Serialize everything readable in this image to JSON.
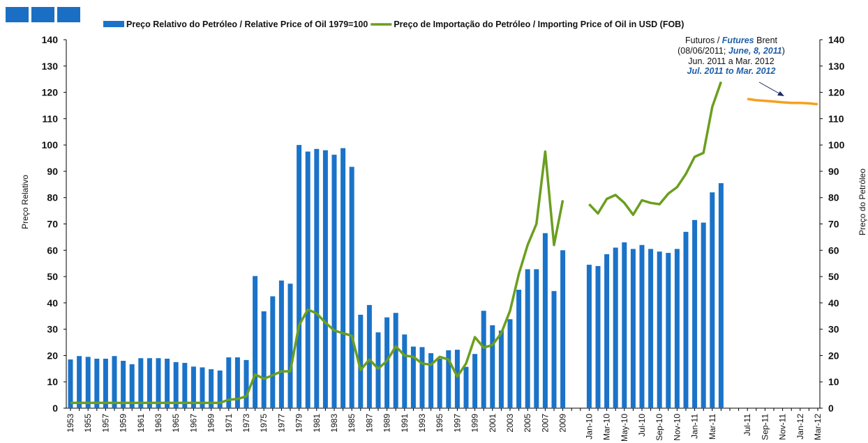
{
  "chart_data": {
    "type": "bar",
    "categories": [
      "1953",
      null,
      "1955",
      null,
      "1957",
      null,
      "1959",
      null,
      "1961",
      null,
      "1963",
      null,
      "1965",
      null,
      "1967",
      null,
      "1969",
      null,
      "1971",
      null,
      "1973",
      null,
      "1975",
      null,
      "1977",
      null,
      "1979",
      null,
      "1981",
      null,
      "1983",
      null,
      "1985",
      null,
      "1987",
      null,
      "1989",
      null,
      "1991",
      null,
      "1993",
      null,
      "1995",
      null,
      "1997",
      null,
      "1999",
      null,
      "2001",
      null,
      "2003",
      null,
      "2005",
      null,
      "2007",
      null,
      "2009",
      null,
      null,
      "Jan-10",
      null,
      "Mar-10",
      null,
      "May-10",
      null,
      "Jul-10",
      null,
      "Sep-10",
      null,
      "Nov-10",
      null,
      "Jan-11",
      null,
      "Mar-11",
      null,
      null,
      null,
      "Jul-11",
      null,
      "Sep-11",
      null,
      "Nov-11",
      null,
      "Jan-12",
      null,
      "Mar-12"
    ],
    "series": [
      {
        "name": "Preço Relativo do Petróleo / Relative Price of Oil 1979=100",
        "type": "bar",
        "color": "#1a73c8",
        "values": [
          18.5,
          19.8,
          19.5,
          18.8,
          18.8,
          19.8,
          18,
          16.7,
          19,
          19,
          19,
          18.8,
          17.5,
          17.2,
          15.8,
          15.5,
          14.8,
          14.3,
          19.3,
          19.3,
          18.3,
          50.2,
          36.8,
          42.5,
          48.5,
          47.3,
          100,
          97.5,
          98.5,
          98,
          96.3,
          98.8,
          91.7,
          35.5,
          39.2,
          28.8,
          34.5,
          36.2,
          28,
          23.4,
          23.2,
          20.9,
          18.8,
          22,
          22.2,
          15.7,
          20.6,
          37,
          31.5,
          29.5,
          33.8,
          45,
          52.8,
          52.8,
          66.5,
          44.5,
          60,
          null,
          null,
          54.5,
          54,
          58.5,
          61,
          63,
          60.5,
          62,
          60.5,
          59.5,
          59,
          60.5,
          67,
          71.5,
          70.5,
          82,
          85.5,
          null,
          null,
          null,
          null,
          null,
          null,
          null,
          null,
          null,
          null,
          null
        ]
      },
      {
        "name": "Preço de Importação do Petróleo / Importing Price of Oil in USD (FOB)",
        "type": "line",
        "axis": "y2",
        "color": "#6b9e1f",
        "values": [
          2,
          2,
          2,
          2,
          2,
          2,
          2,
          2,
          2,
          2,
          2,
          2,
          2,
          2,
          2,
          2,
          2,
          2,
          3.2,
          3.5,
          4.5,
          12.8,
          11.2,
          12.5,
          14,
          14,
          31.5,
          37.5,
          36,
          32.5,
          29.5,
          28.5,
          27.5,
          14.5,
          18.5,
          15,
          18,
          23.5,
          20,
          19.5,
          17,
          16.5,
          19.5,
          18.5,
          12,
          17,
          27,
          23,
          24,
          28.5,
          37,
          51,
          62,
          70,
          97.5,
          62,
          79,
          null,
          null,
          77.5,
          74,
          79.5,
          81,
          78,
          73.5,
          79,
          78,
          77.5,
          81.5,
          84,
          89,
          95.5,
          97,
          114.5,
          124,
          null,
          null,
          null,
          null,
          null,
          null,
          null,
          null,
          null,
          null,
          null
        ]
      },
      {
        "type": "line",
        "axis": "y2",
        "color": "#f5a01e",
        "values": [
          null,
          null,
          null,
          null,
          null,
          null,
          null,
          null,
          null,
          null,
          null,
          null,
          null,
          null,
          null,
          null,
          null,
          null,
          null,
          null,
          null,
          null,
          null,
          null,
          null,
          null,
          null,
          null,
          null,
          null,
          null,
          null,
          null,
          null,
          null,
          null,
          null,
          null,
          null,
          null,
          null,
          null,
          null,
          null,
          null,
          null,
          null,
          null,
          null,
          null,
          null,
          null,
          null,
          null,
          null,
          null,
          null,
          null,
          null,
          null,
          null,
          null,
          null,
          null,
          null,
          null,
          null,
          null,
          null,
          null,
          null,
          null,
          null,
          null,
          null,
          null,
          null,
          117.5,
          117,
          116.8,
          116.5,
          116.2,
          116,
          116,
          115.8,
          115.5
        ]
      }
    ],
    "ylabel": "Preço Relativo",
    "y2label": "Preço do Petróleo",
    "ylim": [
      0,
      140
    ],
    "yticks": [
      0,
      10,
      20,
      30,
      40,
      50,
      60,
      70,
      80,
      90,
      100,
      110,
      120,
      130,
      140
    ],
    "y2lim": [
      0,
      140
    ],
    "y2ticks": [
      0,
      10,
      20,
      30,
      40,
      50,
      60,
      70,
      80,
      90,
      100,
      110,
      120,
      130,
      140
    ],
    "annotation": {
      "line1": [
        "Futuros / ",
        "Futures",
        " Brent"
      ],
      "line2": [
        "(08/06/2011;  ",
        "June, 8, 2011",
        ")"
      ],
      "line3": "Jun. 2011 a Mar. 2012",
      "line4": "Jul. 2011 to Mar. 2012"
    }
  }
}
